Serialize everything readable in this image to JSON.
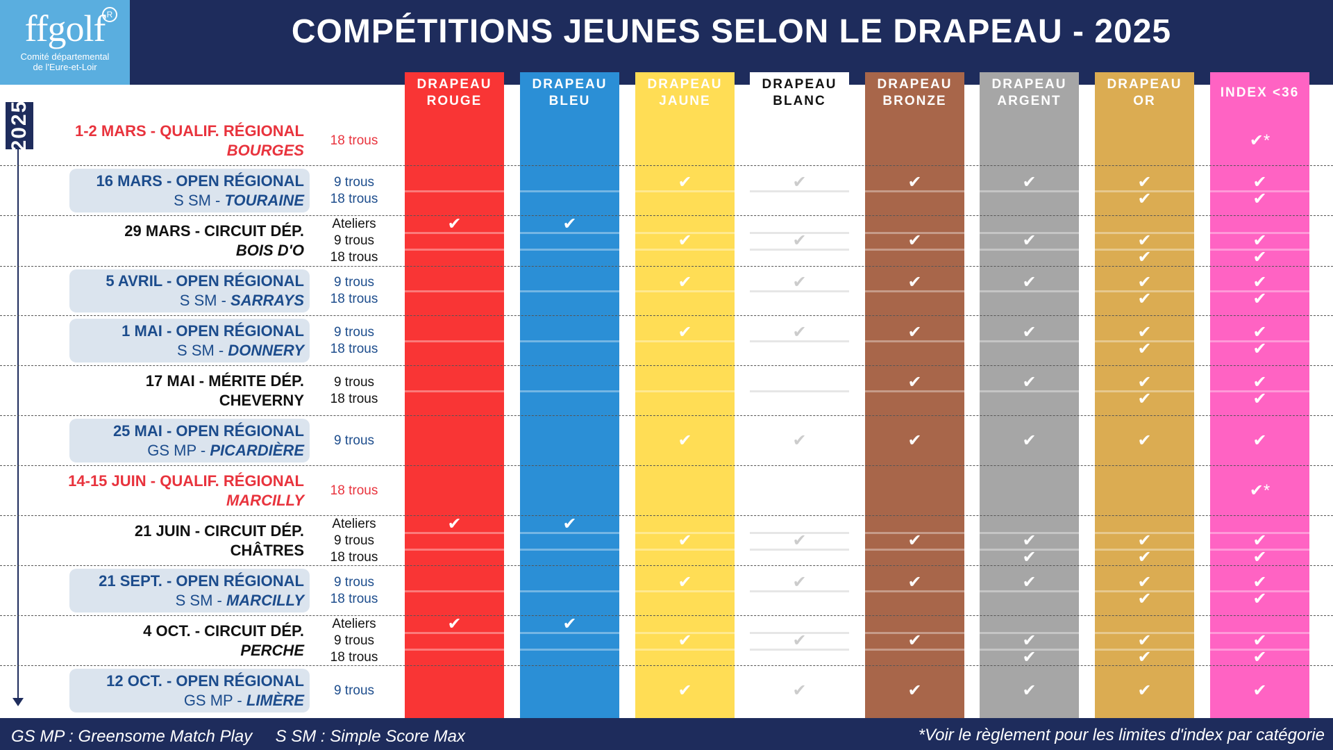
{
  "logo": {
    "brand": "ffgolf",
    "reg": "R",
    "line1": "Comité départemental",
    "line2": "de l'Eure-et-Loir"
  },
  "title": "COMPÉTITIONS  JEUNES SELON LE DRAPEAU - 2025",
  "year": "2025",
  "colors": {
    "navy": "#1e2c5c",
    "red_event": "#e8333d",
    "open_text": "#1c4c8c",
    "open_bg": "#dbe4ee"
  },
  "columns": [
    {
      "label1": "DRAPEAU",
      "label2": "ROUGE",
      "color": "#f93535",
      "text": "#ffffff",
      "check": "#ffffff"
    },
    {
      "label1": "DRAPEAU",
      "label2": "BLEU",
      "color": "#2b8fd6",
      "text": "#ffffff",
      "check": "#ffffff"
    },
    {
      "label1": "DRAPEAU",
      "label2": "JAUNE",
      "color": "#ffdd55",
      "text": "#ffffff",
      "check": "#ffffff"
    },
    {
      "label1": "DRAPEAU",
      "label2": "BLANC",
      "color": "#ffffff",
      "text": "#111111",
      "check": "#cccccc"
    },
    {
      "label1": "DRAPEAU",
      "label2": "BRONZE",
      "color": "#a8664a",
      "text": "#ffffff",
      "check": "#ffffff"
    },
    {
      "label1": "DRAPEAU",
      "label2": "ARGENT",
      "color": "#a6a6a6",
      "text": "#ffffff",
      "check": "#ffffff"
    },
    {
      "label1": "DRAPEAU",
      "label2": "OR",
      "color": "#dbac52",
      "text": "#ffffff",
      "check": "#ffffff"
    },
    {
      "label1": "INDEX <36",
      "label2": "",
      "color": "#ff63c3",
      "text": "#ffffff",
      "check": "#ffffff"
    }
  ],
  "events": [
    {
      "date": "1-2 MARS",
      "type": "QUALIF. RÉGIONAL",
      "prefix": "",
      "venue": "BOURGES",
      "style": "qualif",
      "formats": [
        {
          "label": "18 trous",
          "checks": [
            0,
            0,
            0,
            0,
            0,
            0,
            0,
            2
          ]
        }
      ]
    },
    {
      "date": "16 MARS",
      "type": "OPEN RÉGIONAL",
      "prefix": "S SM - ",
      "venue": "TOURAINE",
      "style": "open",
      "formats": [
        {
          "label": "9 trous",
          "checks": [
            0,
            0,
            1,
            1,
            1,
            1,
            1,
            1
          ]
        },
        {
          "label": "18 trous",
          "checks": [
            0,
            0,
            0,
            0,
            0,
            0,
            1,
            1
          ]
        }
      ]
    },
    {
      "date": "29 MARS",
      "type": "CIRCUIT DÉP.",
      "prefix": "",
      "venue": "BOIS D'O",
      "style": "circuit",
      "formats": [
        {
          "label": "Ateliers",
          "checks": [
            1,
            1,
            0,
            0,
            0,
            0,
            0,
            0
          ]
        },
        {
          "label": "9 trous",
          "checks": [
            0,
            0,
            1,
            1,
            1,
            1,
            1,
            1
          ]
        },
        {
          "label": "18 trous",
          "checks": [
            0,
            0,
            0,
            0,
            0,
            0,
            1,
            1
          ]
        }
      ]
    },
    {
      "date": "5 AVRIL",
      "type": "OPEN RÉGIONAL",
      "prefix": "S SM - ",
      "venue": "SARRAYS",
      "style": "open",
      "formats": [
        {
          "label": "9 trous",
          "checks": [
            0,
            0,
            1,
            1,
            1,
            1,
            1,
            1
          ]
        },
        {
          "label": "18 trous",
          "checks": [
            0,
            0,
            0,
            0,
            0,
            0,
            1,
            1
          ]
        }
      ]
    },
    {
      "date": "1 MAI",
      "type": "OPEN RÉGIONAL",
      "prefix": "S SM - ",
      "venue": "DONNERY",
      "style": "open",
      "formats": [
        {
          "label": "9 trous",
          "checks": [
            0,
            0,
            1,
            1,
            1,
            1,
            1,
            1
          ]
        },
        {
          "label": "18 trous",
          "checks": [
            0,
            0,
            0,
            0,
            0,
            0,
            1,
            1
          ]
        }
      ]
    },
    {
      "date": "17 MAI",
      "type": "MÉRITE DÉP.",
      "prefix": "",
      "venue": "CHEVERNY",
      "style": "merite",
      "formats": [
        {
          "label": "9 trous",
          "checks": [
            0,
            0,
            0,
            0,
            1,
            1,
            1,
            1
          ]
        },
        {
          "label": "18 trous",
          "checks": [
            0,
            0,
            0,
            0,
            0,
            0,
            1,
            1
          ]
        }
      ]
    },
    {
      "date": "25 MAI",
      "type": "OPEN RÉGIONAL",
      "prefix": "GS MP - ",
      "venue": "PICARDIÈRE",
      "style": "open",
      "formats": [
        {
          "label": "9 trous",
          "checks": [
            0,
            0,
            1,
            1,
            1,
            1,
            1,
            1
          ]
        }
      ]
    },
    {
      "date": "14-15 JUIN",
      "type": "QUALIF. RÉGIONAL",
      "prefix": "",
      "venue": "MARCILLY",
      "style": "qualif",
      "formats": [
        {
          "label": "18 trous",
          "checks": [
            0,
            0,
            0,
            0,
            0,
            0,
            0,
            2
          ]
        }
      ]
    },
    {
      "date": "21 JUIN",
      "type": "CIRCUIT DÉP.",
      "prefix": "",
      "venue": "CHÂTRES",
      "style": "circuit_plain",
      "formats": [
        {
          "label": "Ateliers",
          "checks": [
            1,
            1,
            0,
            0,
            0,
            0,
            0,
            0
          ]
        },
        {
          "label": "9 trous",
          "checks": [
            0,
            0,
            1,
            1,
            1,
            1,
            1,
            1
          ]
        },
        {
          "label": "18 trous",
          "checks": [
            0,
            0,
            0,
            0,
            0,
            1,
            1,
            1
          ]
        }
      ]
    },
    {
      "date": "21 SEPT.",
      "type": "OPEN RÉGIONAL",
      "prefix": "S SM - ",
      "venue": "MARCILLY",
      "style": "open",
      "formats": [
        {
          "label": "9 trous",
          "checks": [
            0,
            0,
            1,
            1,
            1,
            1,
            1,
            1
          ]
        },
        {
          "label": "18 trous",
          "checks": [
            0,
            0,
            0,
            0,
            0,
            0,
            1,
            1
          ]
        }
      ]
    },
    {
      "date": "4 OCT.",
      "type": "CIRCUIT DÉP.",
      "prefix": "",
      "venue": "PERCHE",
      "style": "circuit",
      "formats": [
        {
          "label": "Ateliers",
          "checks": [
            1,
            1,
            0,
            0,
            0,
            0,
            0,
            0
          ]
        },
        {
          "label": "9 trous",
          "checks": [
            0,
            0,
            1,
            1,
            1,
            1,
            1,
            1
          ]
        },
        {
          "label": "18 trous",
          "checks": [
            0,
            0,
            0,
            0,
            0,
            1,
            1,
            1
          ]
        }
      ]
    },
    {
      "date": "12 OCT.",
      "type": "OPEN RÉGIONAL",
      "prefix": "GS MP - ",
      "venue": "LIMÈRE",
      "style": "open",
      "formats": [
        {
          "label": "9 trous",
          "checks": [
            0,
            0,
            1,
            1,
            1,
            1,
            1,
            1
          ]
        }
      ]
    }
  ],
  "footer": {
    "legend_left": "GS MP : Greensome Match Play     S SM : Simple Score Max",
    "note_right": "*Voir le règlement pour les limites d'index par catégorie"
  }
}
